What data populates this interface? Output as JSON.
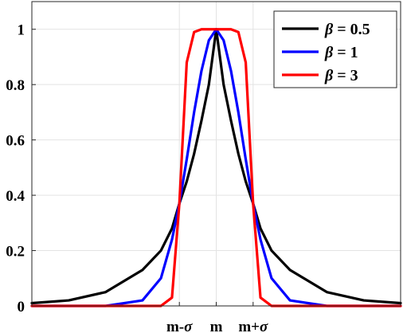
{
  "chart_data": {
    "type": "line",
    "title": "",
    "xlabel": "",
    "ylabel": "",
    "x_ticks": [
      "m-σ",
      "m",
      "m+σ"
    ],
    "x_tick_values": [
      -1,
      0,
      1
    ],
    "xlim": [
      -5,
      5
    ],
    "ylim": [
      0,
      1.1
    ],
    "y_ticks": [
      "0",
      "0.2",
      "0.4",
      "0.6",
      "0.8",
      "1"
    ],
    "y_tick_values": [
      0,
      0.2,
      0.4,
      0.6,
      0.8,
      1
    ],
    "grid": true,
    "legend_position": "top-right",
    "x": [
      -5,
      -4,
      -3,
      -2,
      -1.5,
      -1.2,
      -1,
      -0.8,
      -0.6,
      -0.4,
      -0.2,
      0,
      0.2,
      0.4,
      0.6,
      0.8,
      1,
      1.2,
      1.5,
      2,
      3,
      4,
      5
    ],
    "series": [
      {
        "name": "β = 0.5",
        "color": "#000000",
        "values": [
          0.01,
          0.02,
          0.05,
          0.13,
          0.2,
          0.28,
          0.37,
          0.45,
          0.55,
          0.67,
          0.8,
          1.0,
          0.8,
          0.67,
          0.55,
          0.45,
          0.37,
          0.28,
          0.2,
          0.13,
          0.05,
          0.02,
          0.01
        ]
      },
      {
        "name": "β = 1",
        "color": "#0000ff",
        "values": [
          0.0,
          0.0,
          0.0,
          0.02,
          0.1,
          0.24,
          0.37,
          0.53,
          0.7,
          0.85,
          0.96,
          1.0,
          0.96,
          0.85,
          0.7,
          0.53,
          0.37,
          0.24,
          0.1,
          0.02,
          0.0,
          0.0,
          0.0
        ]
      },
      {
        "name": "β = 3",
        "color": "#ff0000",
        "values": [
          0.0,
          0.0,
          0.0,
          0.0,
          0.0,
          0.03,
          0.37,
          0.88,
          0.99,
          1.0,
          1.0,
          1.0,
          1.0,
          1.0,
          0.99,
          0.88,
          0.37,
          0.03,
          0.0,
          0.0,
          0.0,
          0.0,
          0.0
        ]
      }
    ]
  }
}
